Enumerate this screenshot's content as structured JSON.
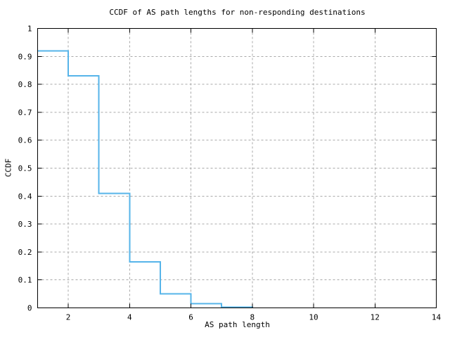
{
  "title": "CCDF of AS path lengths for non-responding destinations",
  "chart_data": {
    "type": "line",
    "subtype": "step-post-ccdf",
    "title": "CCDF of AS path lengths for non-responding destinations",
    "xlabel": "AS path length",
    "ylabel": "CCDF",
    "xlim": [
      1,
      14
    ],
    "ylim": [
      0,
      1
    ],
    "grid": true,
    "legend": false,
    "x_ticks": {
      "values": [
        2,
        4,
        6,
        8,
        10,
        12,
        14
      ],
      "labels": [
        "2",
        "4",
        "6",
        "8",
        "10",
        "12",
        "14"
      ]
    },
    "y_ticks": {
      "values": [
        0,
        0.1,
        0.2,
        0.3,
        0.4,
        0.5,
        0.6,
        0.7,
        0.8,
        0.9,
        1
      ],
      "labels": [
        "0",
        "0.1",
        "0.2",
        "0.3",
        "0.4",
        "0.5",
        "0.6",
        "0.7",
        "0.8",
        "0.9",
        "1"
      ]
    },
    "series": [
      {
        "name": "CCDF of AS path lengths",
        "step": "post",
        "color": "#56B4E9",
        "x": [
          1,
          2,
          3,
          4,
          5,
          6,
          7,
          8
        ],
        "y": [
          0.92,
          0.83,
          0.41,
          0.165,
          0.05,
          0.015,
          0.003,
          0
        ]
      }
    ],
    "colors": {
      "line": "#56B4E9",
      "grid": "#A9A9A9",
      "axis": "#000000",
      "background": "#FFFFFF",
      "text": "#000000"
    }
  }
}
